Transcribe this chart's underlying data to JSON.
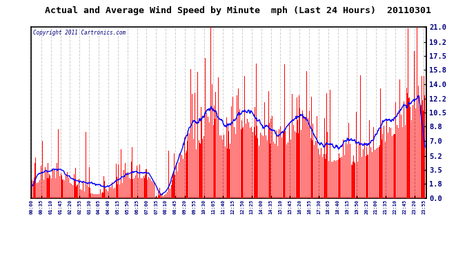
{
  "title": "Actual and Average Wind Speed by Minute  mph (Last 24 Hours)  20110301",
  "copyright_text": "Copyright 2011 Cartronics.com",
  "yticks": [
    0.0,
    1.8,
    3.5,
    5.2,
    7.0,
    8.8,
    10.5,
    12.2,
    14.0,
    15.8,
    17.5,
    19.2,
    21.0
  ],
  "ymin": 0.0,
  "ymax": 21.0,
  "bar_color": "#ff0000",
  "line_color": "#0000ff",
  "background_color": "#ffffff",
  "grid_color": "#c8c8c8",
  "title_color": "#000000",
  "fig_background": "#ffffff",
  "n_minutes": 1440,
  "tick_interval": 35
}
